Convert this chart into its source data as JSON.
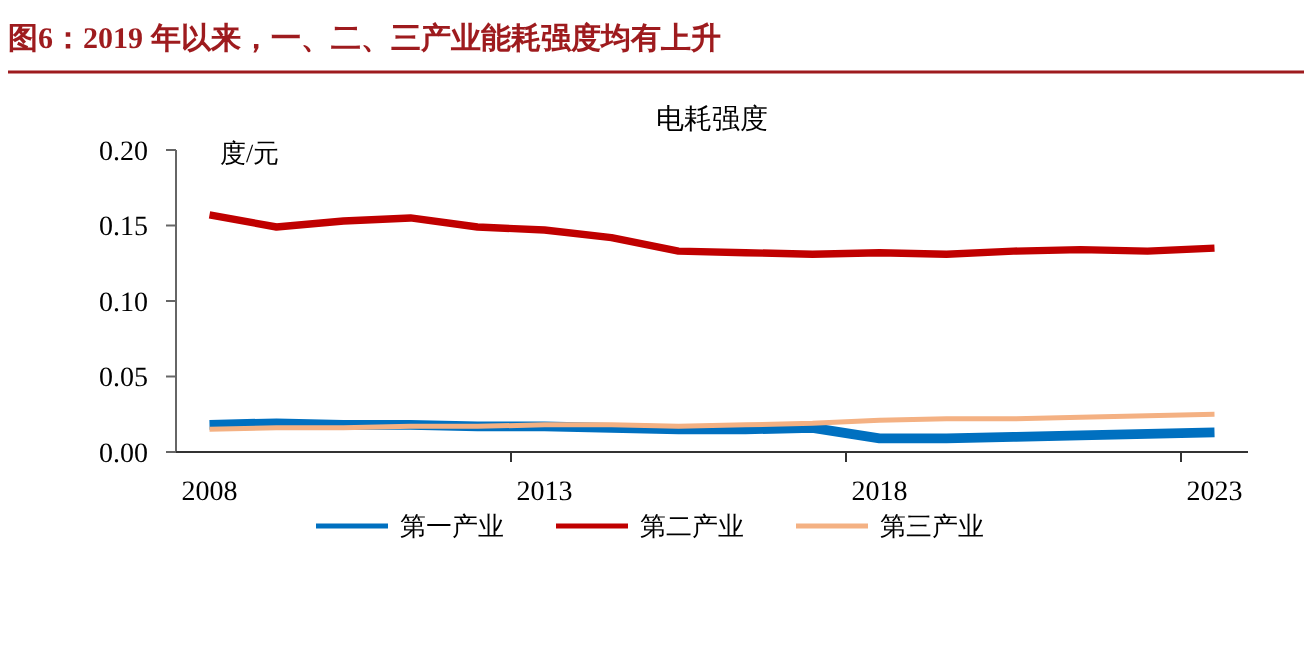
{
  "chart_data": {
    "type": "line",
    "title": "图6：2019 年以来，一、二、三产业能耗强度均有上升",
    "subtitle": "电耗强度",
    "ylabel": "度/元",
    "categories": [
      "2008",
      null,
      null,
      null,
      null,
      "2013",
      null,
      null,
      null,
      null,
      "2018",
      null,
      null,
      null,
      null,
      "2023"
    ],
    "series": [
      {
        "name": "第一产业",
        "color": "#0070c0",
        "values": [
          0.018,
          0.019,
          0.018,
          0.018,
          0.017,
          0.017,
          0.016,
          0.015,
          0.015,
          0.016,
          0.009,
          0.009,
          0.01,
          0.011,
          0.012,
          0.013
        ]
      },
      {
        "name": "第二产业",
        "color": "#c00000",
        "values": [
          0.157,
          0.149,
          0.153,
          0.155,
          0.149,
          0.147,
          0.142,
          0.133,
          0.132,
          0.131,
          0.132,
          0.131,
          0.133,
          0.134,
          0.133,
          0.135
        ]
      },
      {
        "name": "第三产业",
        "color": "#f4b183",
        "values": [
          0.015,
          0.016,
          0.016,
          0.017,
          0.017,
          0.018,
          0.018,
          0.017,
          0.018,
          0.019,
          0.021,
          0.022,
          0.022,
          0.023,
          0.024,
          0.025
        ]
      }
    ],
    "ylim": [
      0,
      0.2
    ],
    "yticks": [
      {
        "value": 0,
        "label": "0.00"
      },
      {
        "value": 0.05,
        "label": "0.05"
      },
      {
        "value": 0.1,
        "label": "0.10"
      },
      {
        "value": 0.15,
        "label": "0.15"
      },
      {
        "value": 0.2,
        "label": "0.20"
      }
    ],
    "grid": false,
    "legend": "bottom",
    "marker": "none",
    "line_style": "solid"
  }
}
